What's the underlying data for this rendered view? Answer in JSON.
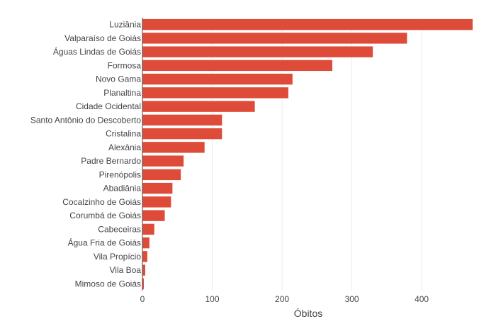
{
  "chart_data": {
    "type": "bar",
    "orientation": "horizontal",
    "title": "",
    "xlabel": "Óbitos",
    "ylabel": "",
    "xlim": [
      0,
      475
    ],
    "x_ticks": [
      0,
      100,
      200,
      300,
      400
    ],
    "grid": {
      "vertical": true,
      "horizontal": false
    },
    "legend": "none",
    "bar_color": "#de4b39",
    "categories": [
      "Luziânia",
      "Valparaíso de Goiás",
      "Águas Lindas de Goiás",
      "Formosa",
      "Novo Gama",
      "Planaltina",
      "Cidade Ocidental",
      "Santo Antônio do Descoberto",
      "Cristalina",
      "Alexânia",
      "Padre Bernardo",
      "Pirenópolis",
      "Abadiânia",
      "Cocalzinho de Goiás",
      "Corumbá de Goiás",
      "Cabeceiras",
      "Água Fria de Goiás",
      "Vila Propício",
      "Vila Boa",
      "Mimoso de Goiás"
    ],
    "values": [
      473,
      379,
      330,
      272,
      215,
      209,
      161,
      114,
      114,
      89,
      59,
      55,
      43,
      41,
      32,
      17,
      10,
      7,
      4,
      2
    ]
  }
}
